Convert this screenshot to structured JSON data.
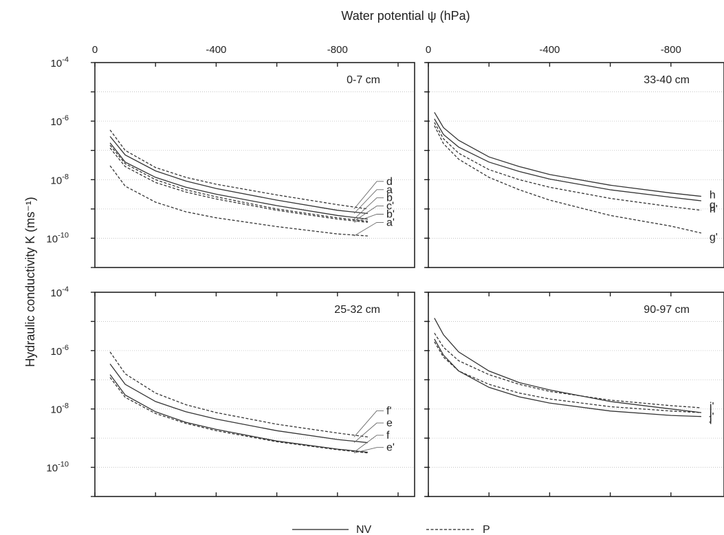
{
  "figure": {
    "x_axis_title": "Water potential ψ (hPa)",
    "y_axis_title": "Hydraulic conductivity K (ms⁻¹)",
    "legend": [
      {
        "label": "NV",
        "style": "solid"
      },
      {
        "label": "P",
        "style": "dashed"
      }
    ]
  },
  "chart_data": [
    {
      "type": "line",
      "panel_label": "0-7 cm",
      "x_axis": {
        "label": "Water potential ψ (hPa)",
        "range": [
          0,
          -1000
        ],
        "ticks": [
          "0",
          "-400",
          "-800"
        ]
      },
      "y_axis": {
        "label": "Hydraulic conductivity K (ms⁻¹)",
        "scale": "log",
        "range": [
          1e-11,
          0.0001
        ],
        "ticks": [
          "10-4",
          "10-6",
          "10-8",
          "10-10"
        ]
      },
      "series": [
        {
          "name": "a",
          "line": "solid",
          "x": [
            -50,
            -100,
            -200,
            -300,
            -400,
            -600,
            -800,
            -900
          ],
          "y": [
            3e-07,
            7e-08,
            2e-08,
            9e-09,
            5e-09,
            2e-09,
            9e-10,
            7e-10
          ]
        },
        {
          "name": "b",
          "line": "solid",
          "x": [
            -50,
            -100,
            -200,
            -300,
            -400,
            -600,
            -800,
            -900
          ],
          "y": [
            1.8e-07,
            4e-08,
            1.2e-08,
            5.5e-09,
            3.2e-09,
            1.3e-09,
            6e-10,
            4.5e-10
          ]
        },
        {
          "name": "d",
          "line": "dashed",
          "x": [
            -50,
            -100,
            -200,
            -300,
            -400,
            -600,
            -800,
            -900
          ],
          "y": [
            5e-07,
            1e-07,
            2.6e-08,
            1.2e-08,
            7e-09,
            3e-09,
            1.4e-09,
            1e-09
          ]
        },
        {
          "name": "c'",
          "line": "dashed",
          "x": [
            -50,
            -100,
            -200,
            -300,
            -400,
            -600,
            -800,
            -900
          ],
          "y": [
            1.5e-07,
            3.5e-08,
            1e-08,
            4.5e-09,
            2.6e-09,
            1e-09,
            5e-10,
            3.8e-10
          ]
        },
        {
          "name": "b'",
          "line": "dashed",
          "x": [
            -50,
            -100,
            -200,
            -300,
            -400,
            -600,
            -800,
            -900
          ],
          "y": [
            1.2e-07,
            2.8e-08,
            8e-09,
            3.8e-09,
            2.2e-09,
            9e-10,
            4.5e-10,
            3.5e-10
          ]
        },
        {
          "name": "a'",
          "line": "dashed",
          "x": [
            -50,
            -100,
            -200,
            -300,
            -400,
            -600,
            -800,
            -900
          ],
          "y": [
            3e-08,
            6e-09,
            1.7e-09,
            8e-10,
            5e-10,
            2.5e-10,
            1.4e-10,
            1.2e-10
          ]
        }
      ],
      "annotations": [
        "d",
        "a",
        "b",
        "c'",
        "b'",
        "a'"
      ]
    },
    {
      "type": "line",
      "panel_label": "33-40 cm",
      "x_axis": {
        "label": "Water potential ψ (hPa)",
        "range": [
          0,
          -1000
        ],
        "ticks": [
          "0",
          "-400",
          "-800"
        ]
      },
      "y_axis": {
        "label": "Hydraulic conductivity K (ms⁻¹)",
        "scale": "log",
        "range": [
          1e-11,
          0.0001
        ],
        "ticks": [
          "10-4",
          "10-6",
          "10-8",
          "10-10"
        ]
      },
      "series": [
        {
          "name": "h",
          "line": "solid",
          "x": [
            -20,
            -50,
            -100,
            -200,
            -300,
            -400,
            -600,
            -800,
            -900
          ],
          "y": [
            2e-06,
            6e-07,
            2.2e-07,
            6e-08,
            2.8e-08,
            1.5e-08,
            6.5e-09,
            3.5e-09,
            2.7e-09
          ]
        },
        {
          "name": "g",
          "line": "solid",
          "x": [
            -20,
            -50,
            -100,
            -200,
            -300,
            -400,
            -600,
            -800,
            -900
          ],
          "y": [
            1.2e-06,
            3.5e-07,
            1.3e-07,
            4e-08,
            1.9e-08,
            1.05e-08,
            4.5e-09,
            2.5e-09,
            1.9e-09
          ]
        },
        {
          "name": "h'",
          "line": "dashed",
          "x": [
            -20,
            -50,
            -100,
            -200,
            -300,
            -400,
            -600,
            -800,
            -900
          ],
          "y": [
            9e-07,
            2.5e-07,
            8e-08,
            2.2e-08,
            1e-08,
            5.5e-09,
            2.3e-09,
            1.2e-09,
            9e-10
          ]
        },
        {
          "name": "g'",
          "line": "dashed",
          "x": [
            -20,
            -50,
            -100,
            -200,
            -300,
            -400,
            -600,
            -800,
            -900
          ],
          "y": [
            7e-07,
            1.7e-07,
            5e-08,
            1.2e-08,
            4.5e-09,
            2e-09,
            6e-10,
            2.6e-10,
            1.5e-10
          ]
        }
      ],
      "annotations": [
        "h",
        "g",
        "h'",
        "g'"
      ]
    },
    {
      "type": "line",
      "panel_label": "25-32 cm",
      "x_axis": {
        "label": "Water potential ψ (hPa)",
        "range": [
          0,
          -1000
        ],
        "ticks": [
          "0",
          "-400",
          "-800"
        ]
      },
      "y_axis": {
        "label": "Hydraulic conductivity K (ms⁻¹)",
        "scale": "log",
        "range": [
          1e-11,
          0.0001
        ],
        "ticks": [
          "10-4",
          "10-6",
          "10-8",
          "10-10"
        ]
      },
      "series": [
        {
          "name": "e",
          "line": "solid",
          "x": [
            -50,
            -100,
            -200,
            -300,
            -400,
            -600,
            -800,
            -900
          ],
          "y": [
            3.5e-07,
            7e-08,
            1.8e-08,
            8e-09,
            4.5e-09,
            1.8e-09,
            9e-10,
            7e-10
          ]
        },
        {
          "name": "f",
          "line": "solid",
          "x": [
            -50,
            -100,
            -200,
            -300,
            -400,
            -600,
            -800,
            -900
          ],
          "y": [
            1.5e-07,
            3e-08,
            8e-09,
            3.5e-09,
            2e-09,
            8e-10,
            4.2e-10,
            3.3e-10
          ]
        },
        {
          "name": "f'",
          "line": "dashed",
          "x": [
            -50,
            -100,
            -200,
            -300,
            -400,
            -600,
            -800,
            -900
          ],
          "y": [
            9e-07,
            1.6e-07,
            3.5e-08,
            1.4e-08,
            7.5e-09,
            3e-09,
            1.5e-09,
            1.1e-09
          ]
        },
        {
          "name": "e'",
          "line": "dashed",
          "x": [
            -50,
            -100,
            -200,
            -300,
            -400,
            -600,
            -800,
            -900
          ],
          "y": [
            1.2e-07,
            2.5e-08,
            7e-09,
            3.2e-09,
            1.8e-09,
            7.5e-10,
            4e-10,
            3.1e-10
          ]
        }
      ],
      "annotations": [
        "f'",
        "e",
        "f",
        "e'"
      ]
    },
    {
      "type": "line",
      "panel_label": "90-97 cm",
      "x_axis": {
        "label": "Water potential ψ (hPa)",
        "range": [
          0,
          -1000
        ],
        "ticks": [
          "0",
          "-400",
          "-800"
        ]
      },
      "y_axis": {
        "label": "Hydraulic conductivity K (ms⁻¹)",
        "scale": "log",
        "range": [
          1e-11,
          0.0001
        ],
        "ticks": [
          "10-4",
          "10-6",
          "10-8",
          "10-10"
        ]
      },
      "series": [
        {
          "name": "j",
          "line": "solid",
          "x": [
            -20,
            -50,
            -100,
            -200,
            -300,
            -400,
            -600,
            -800,
            -900
          ],
          "y": [
            1.3e-05,
            3.5e-06,
            9e-07,
            2e-07,
            8e-08,
            4.5e-08,
            1.8e-08,
            1e-08,
            7.5e-09
          ]
        },
        {
          "name": "i",
          "line": "solid",
          "x": [
            -20,
            -50,
            -100,
            -200,
            -300,
            -400,
            -600,
            -800,
            -900
          ],
          "y": [
            2.5e-06,
            7e-07,
            2e-07,
            5.5e-08,
            2.6e-08,
            1.6e-08,
            8.5e-09,
            6e-09,
            5.5e-09
          ]
        },
        {
          "name": "i'",
          "line": "dashed",
          "x": [
            -20,
            -50,
            -100,
            -200,
            -300,
            -400,
            -600,
            -800,
            -900
          ],
          "y": [
            4e-06,
            1.3e-06,
            4.5e-07,
            1.5e-07,
            7e-08,
            4e-08,
            2e-08,
            1.3e-08,
            1.1e-08
          ]
        },
        {
          "name": "j'",
          "line": "dashed",
          "x": [
            -20,
            -50,
            -100,
            -200,
            -300,
            -400,
            -600,
            -800,
            -900
          ],
          "y": [
            2e-06,
            6e-07,
            2e-07,
            7e-08,
            3.5e-08,
            2.2e-08,
            1.2e-08,
            8.5e-09,
            7.5e-09
          ]
        }
      ],
      "annotations": [
        "i'",
        "j'",
        "j",
        "i"
      ]
    }
  ]
}
